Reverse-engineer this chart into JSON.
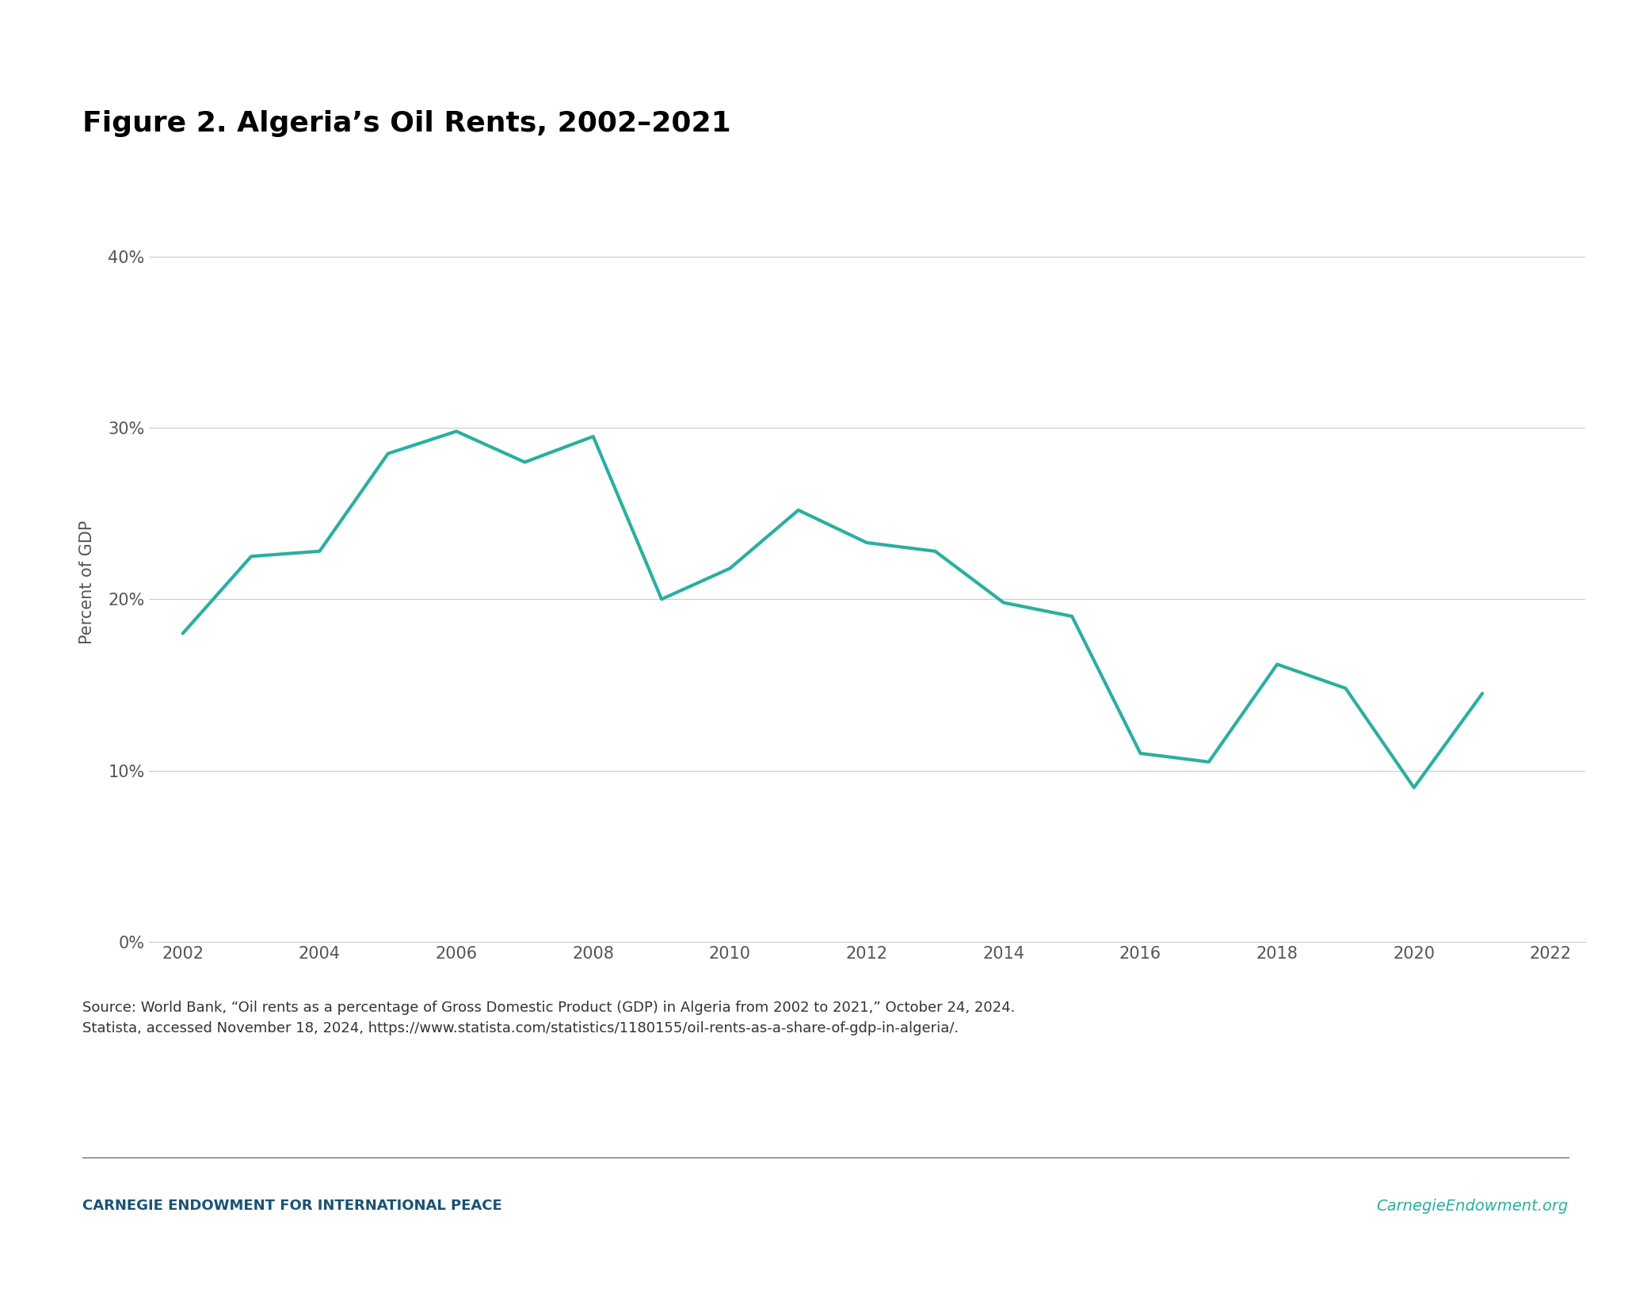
{
  "title": "Figure 2. Algeria’s Oil Rents, 2002–2021",
  "ylabel": "Percent of GDP",
  "years": [
    2002,
    2003,
    2004,
    2005,
    2006,
    2007,
    2008,
    2009,
    2010,
    2011,
    2012,
    2013,
    2014,
    2015,
    2016,
    2017,
    2018,
    2019,
    2020,
    2021
  ],
  "values": [
    18.0,
    22.5,
    22.8,
    28.5,
    29.8,
    28.0,
    29.5,
    20.0,
    21.8,
    25.2,
    23.3,
    22.8,
    19.8,
    19.0,
    11.0,
    10.5,
    16.2,
    14.8,
    9.0,
    14.5
  ],
  "line_color": "#2aafa0",
  "line_width": 3.0,
  "background_color": "#ffffff",
  "plot_bg_color": "#ffffff",
  "grid_color": "#cccccc",
  "tick_color": "#555555",
  "title_fontsize": 26,
  "title_fontweight": "bold",
  "ylabel_fontsize": 15,
  "tick_fontsize": 15,
  "ylim": [
    0,
    42
  ],
  "yticks": [
    0,
    10,
    20,
    30,
    40
  ],
  "xlim": [
    2001.5,
    2022.5
  ],
  "xticks": [
    2002,
    2004,
    2006,
    2008,
    2010,
    2012,
    2014,
    2016,
    2018,
    2020,
    2022
  ],
  "source_text": "Source: World Bank, “Oil rents as a percentage of Gross Domestic Product (GDP) in Algeria from 2002 to 2021,” October 24, 2024.\nStatista, accessed November 18, 2024, https://www.statista.com/statistics/1180155/oil-rents-as-a-share-of-gdp-in-algeria/.",
  "footer_left": "CARNEGIE ENDOWMENT FOR INTERNATIONAL PEACE",
  "footer_right": "CarnegieEndowment.org",
  "footer_left_color": "#1a5276",
  "footer_right_color": "#2aafa0",
  "footer_fontsize": 13,
  "source_fontsize": 13
}
